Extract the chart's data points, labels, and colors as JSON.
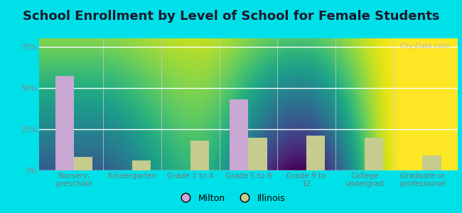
{
  "title": "School Enrollment by Level of School for Female Students",
  "categories": [
    "Nursery,\npreschool",
    "Kindergarten",
    "Grade 1 to 4",
    "Grade 5 to 8",
    "Grade 9 to\n12",
    "College\nundergrad",
    "Graduate or\nprofessional"
  ],
  "milton_values": [
    57,
    0,
    0,
    43,
    0,
    0,
    0
  ],
  "illinois_values": [
    8,
    6,
    18,
    20,
    21,
    20,
    9
  ],
  "milton_color": "#c9a8d4",
  "illinois_color": "#c5cc8e",
  "background_outer": "#00e0e8",
  "background_inner_top": "#f5faf0",
  "background_inner_bottom": "#d8ecc8",
  "ylim": [
    0,
    80
  ],
  "yticks": [
    0,
    25,
    50,
    75
  ],
  "ytick_labels": [
    "0%",
    "25%",
    "50%",
    "75%"
  ],
  "bar_width": 0.32,
  "legend_labels": [
    "Milton",
    "Illinois"
  ],
  "watermark": "City-Data.com",
  "title_fontsize": 13,
  "tick_fontsize": 7.5,
  "legend_fontsize": 9
}
